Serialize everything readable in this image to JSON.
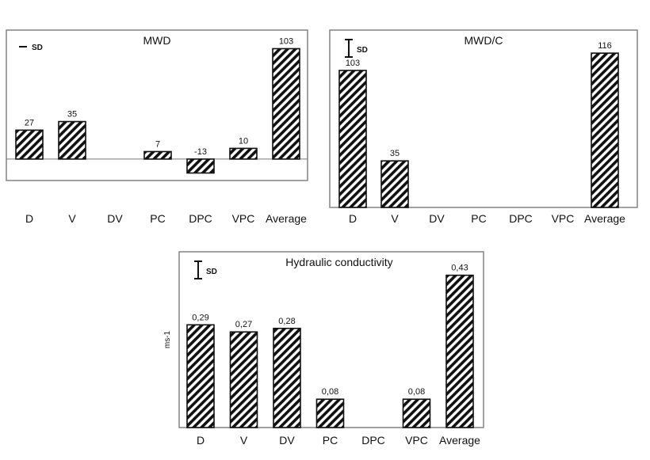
{
  "chart_data": [
    {
      "id": "mwd",
      "type": "bar",
      "title": "MWD",
      "legend": "SD",
      "legend_style": "dash",
      "ylabel": "",
      "categories": [
        "D",
        "V",
        "DV",
        "PC",
        "DPC",
        "VPC",
        "Average"
      ],
      "values": [
        27,
        35,
        null,
        7,
        -13,
        10,
        103
      ],
      "value_labels": [
        "27",
        "35",
        "",
        "7",
        "-13",
        "10",
        "103"
      ],
      "ylim": [
        -20,
        110
      ]
    },
    {
      "id": "mwdc",
      "type": "bar",
      "title": "MWD/C",
      "legend": "SD",
      "legend_style": "errorbar",
      "ylabel": "",
      "categories": [
        "D",
        "V",
        "DV",
        "PC",
        "DPC",
        "VPC",
        "Average"
      ],
      "values": [
        103,
        35,
        null,
        null,
        null,
        null,
        116
      ],
      "value_labels": [
        "103",
        "35",
        "",
        "",
        "",
        "",
        "116"
      ],
      "ylim": [
        0,
        125
      ]
    },
    {
      "id": "hc",
      "type": "bar",
      "title": "Hydraulic conductivity",
      "legend": "SD",
      "legend_style": "errorbar",
      "ylabel": "ms-1",
      "categories": [
        "D",
        "V",
        "DV",
        "PC",
        "DPC",
        "VPC",
        "Average"
      ],
      "values": [
        0.29,
        0.27,
        0.28,
        0.08,
        null,
        0.08,
        0.43
      ],
      "value_labels": [
        "0,29",
        "0,27",
        "0,28",
        "0,08",
        "",
        "0,08",
        "0,43"
      ],
      "ylim": [
        0,
        0.465
      ]
    }
  ]
}
